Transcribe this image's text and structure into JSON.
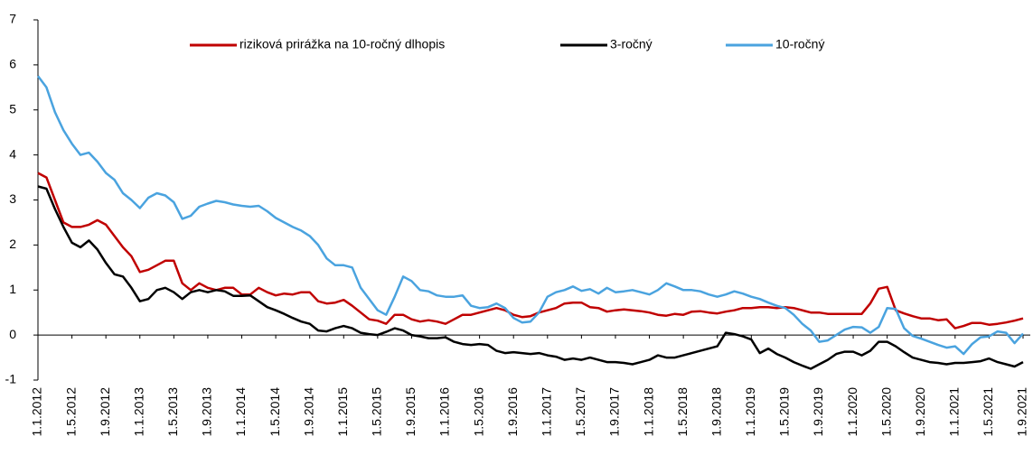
{
  "chart_data": {
    "type": "line",
    "categories": [
      "1.1.2012",
      null,
      null,
      null,
      "1.5.2012",
      null,
      null,
      null,
      "1.9.2012",
      null,
      null,
      null,
      "1.1.2013",
      null,
      null,
      null,
      "1.5.2013",
      null,
      null,
      null,
      "1.9.2013",
      null,
      null,
      null,
      "1.1.2014",
      null,
      null,
      null,
      "1.5.2014",
      null,
      null,
      null,
      "1.9.2014",
      null,
      null,
      null,
      "1.1.2015",
      null,
      null,
      null,
      "1.5.2015",
      null,
      null,
      null,
      "1.9.2015",
      null,
      null,
      null,
      "1.1.2016",
      null,
      null,
      null,
      "1.5.2016",
      null,
      null,
      null,
      "1.9.2016",
      null,
      null,
      null,
      "1.1.2017",
      null,
      null,
      null,
      "1.5.2017",
      null,
      null,
      null,
      "1.9.2017",
      null,
      null,
      null,
      "1.1.2018",
      null,
      null,
      null,
      "1.5.2018",
      null,
      null,
      null,
      "1.9.2018",
      null,
      null,
      null,
      "1.1.2019",
      null,
      null,
      null,
      "1.5.2019",
      null,
      null,
      null,
      "1.9.2019",
      null,
      null,
      null,
      "1.1.2020",
      null,
      null,
      null,
      "1.5.2020",
      null,
      null,
      null,
      "1.9.2020",
      null,
      null,
      null,
      "1.1.2021",
      null,
      null,
      null,
      "1.5.2021",
      null,
      null,
      null,
      "1.9.2021"
    ],
    "series": [
      {
        "name": "riziková prirážka na 10-ročný dlhopis",
        "color": "#c00000",
        "values": [
          3.6,
          3.5,
          3.0,
          2.5,
          2.4,
          2.4,
          2.45,
          2.55,
          2.45,
          2.2,
          1.95,
          1.75,
          1.4,
          1.45,
          1.55,
          1.65,
          1.65,
          1.15,
          1.0,
          1.15,
          1.05,
          1.0,
          1.05,
          1.05,
          0.9,
          0.9,
          1.05,
          0.95,
          0.88,
          0.92,
          0.9,
          0.95,
          0.95,
          0.75,
          0.7,
          0.72,
          0.78,
          0.65,
          0.5,
          0.35,
          0.32,
          0.25,
          0.45,
          0.45,
          0.35,
          0.3,
          0.33,
          0.3,
          0.25,
          0.35,
          0.45,
          0.45,
          0.5,
          0.55,
          0.6,
          0.55,
          0.45,
          0.4,
          0.42,
          0.5,
          0.55,
          0.6,
          0.7,
          0.72,
          0.72,
          0.62,
          0.6,
          0.52,
          0.55,
          0.57,
          0.55,
          0.53,
          0.5,
          0.45,
          0.43,
          0.47,
          0.45,
          0.52,
          0.53,
          0.5,
          0.48,
          0.52,
          0.55,
          0.6,
          0.6,
          0.62,
          0.62,
          0.6,
          0.62,
          0.6,
          0.55,
          0.5,
          0.5,
          0.47,
          0.47,
          0.47,
          0.47,
          0.47,
          0.7,
          1.03,
          1.07,
          0.55,
          0.48,
          0.42,
          0.37,
          0.37,
          0.33,
          0.35,
          0.15,
          0.2,
          0.27,
          0.27,
          0.23,
          0.25,
          0.28,
          0.32,
          0.37
        ]
      },
      {
        "name": "3-ročný",
        "color": "#000000",
        "values": [
          3.3,
          3.25,
          2.8,
          2.4,
          2.05,
          1.95,
          2.1,
          1.9,
          1.6,
          1.35,
          1.3,
          1.05,
          0.75,
          0.8,
          1.0,
          1.05,
          0.95,
          0.8,
          0.95,
          1.0,
          0.95,
          1.0,
          0.97,
          0.87,
          0.87,
          0.88,
          0.75,
          0.62,
          0.55,
          0.47,
          0.38,
          0.3,
          0.25,
          0.1,
          0.08,
          0.15,
          0.2,
          0.15,
          0.05,
          0.02,
          0.0,
          0.07,
          0.15,
          0.1,
          0.0,
          -0.03,
          -0.07,
          -0.07,
          -0.05,
          -0.15,
          -0.2,
          -0.22,
          -0.2,
          -0.22,
          -0.35,
          -0.4,
          -0.38,
          -0.4,
          -0.42,
          -0.4,
          -0.45,
          -0.48,
          -0.55,
          -0.52,
          -0.55,
          -0.5,
          -0.55,
          -0.6,
          -0.6,
          -0.62,
          -0.65,
          -0.6,
          -0.55,
          -0.45,
          -0.5,
          -0.5,
          -0.45,
          -0.4,
          -0.35,
          -0.3,
          -0.25,
          0.05,
          0.02,
          -0.03,
          -0.1,
          -0.4,
          -0.3,
          -0.42,
          -0.5,
          -0.6,
          -0.68,
          -0.75,
          -0.65,
          -0.55,
          -0.42,
          -0.37,
          -0.37,
          -0.45,
          -0.35,
          -0.15,
          -0.15,
          -0.25,
          -0.38,
          -0.5,
          -0.55,
          -0.6,
          -0.62,
          -0.65,
          -0.62,
          -0.62,
          -0.6,
          -0.58,
          -0.52,
          -0.6,
          -0.65,
          -0.7,
          -0.6
        ]
      },
      {
        "name": "10-ročný",
        "color": "#4aa3df",
        "values": [
          5.75,
          5.5,
          4.95,
          4.55,
          4.25,
          4.0,
          4.05,
          3.85,
          3.6,
          3.45,
          3.15,
          3.0,
          2.82,
          3.05,
          3.15,
          3.1,
          2.95,
          2.58,
          2.65,
          2.85,
          2.92,
          2.98,
          2.95,
          2.9,
          2.87,
          2.85,
          2.87,
          2.75,
          2.6,
          2.5,
          2.4,
          2.32,
          2.2,
          2.0,
          1.7,
          1.55,
          1.55,
          1.5,
          1.05,
          0.8,
          0.55,
          0.45,
          0.85,
          1.3,
          1.2,
          1.0,
          0.97,
          0.88,
          0.85,
          0.85,
          0.88,
          0.65,
          0.6,
          0.62,
          0.7,
          0.6,
          0.38,
          0.28,
          0.3,
          0.5,
          0.85,
          0.95,
          1.0,
          1.08,
          0.98,
          1.02,
          0.92,
          1.05,
          0.95,
          0.97,
          1.0,
          0.95,
          0.9,
          1.0,
          1.15,
          1.08,
          1.0,
          1.0,
          0.97,
          0.9,
          0.85,
          0.9,
          0.97,
          0.92,
          0.85,
          0.8,
          0.72,
          0.65,
          0.6,
          0.45,
          0.25,
          0.1,
          -0.15,
          -0.12,
          0.0,
          0.12,
          0.18,
          0.17,
          0.05,
          0.18,
          0.6,
          0.58,
          0.15,
          -0.02,
          -0.08,
          -0.15,
          -0.22,
          -0.28,
          -0.25,
          -0.42,
          -0.2,
          -0.05,
          -0.03,
          0.08,
          0.05,
          -0.18,
          0.03
        ]
      }
    ],
    "ylim": [
      -1,
      7
    ],
    "yticks": [
      -1,
      0,
      1,
      2,
      3,
      4,
      5,
      6,
      7
    ],
    "grid": false,
    "legend": "top"
  }
}
